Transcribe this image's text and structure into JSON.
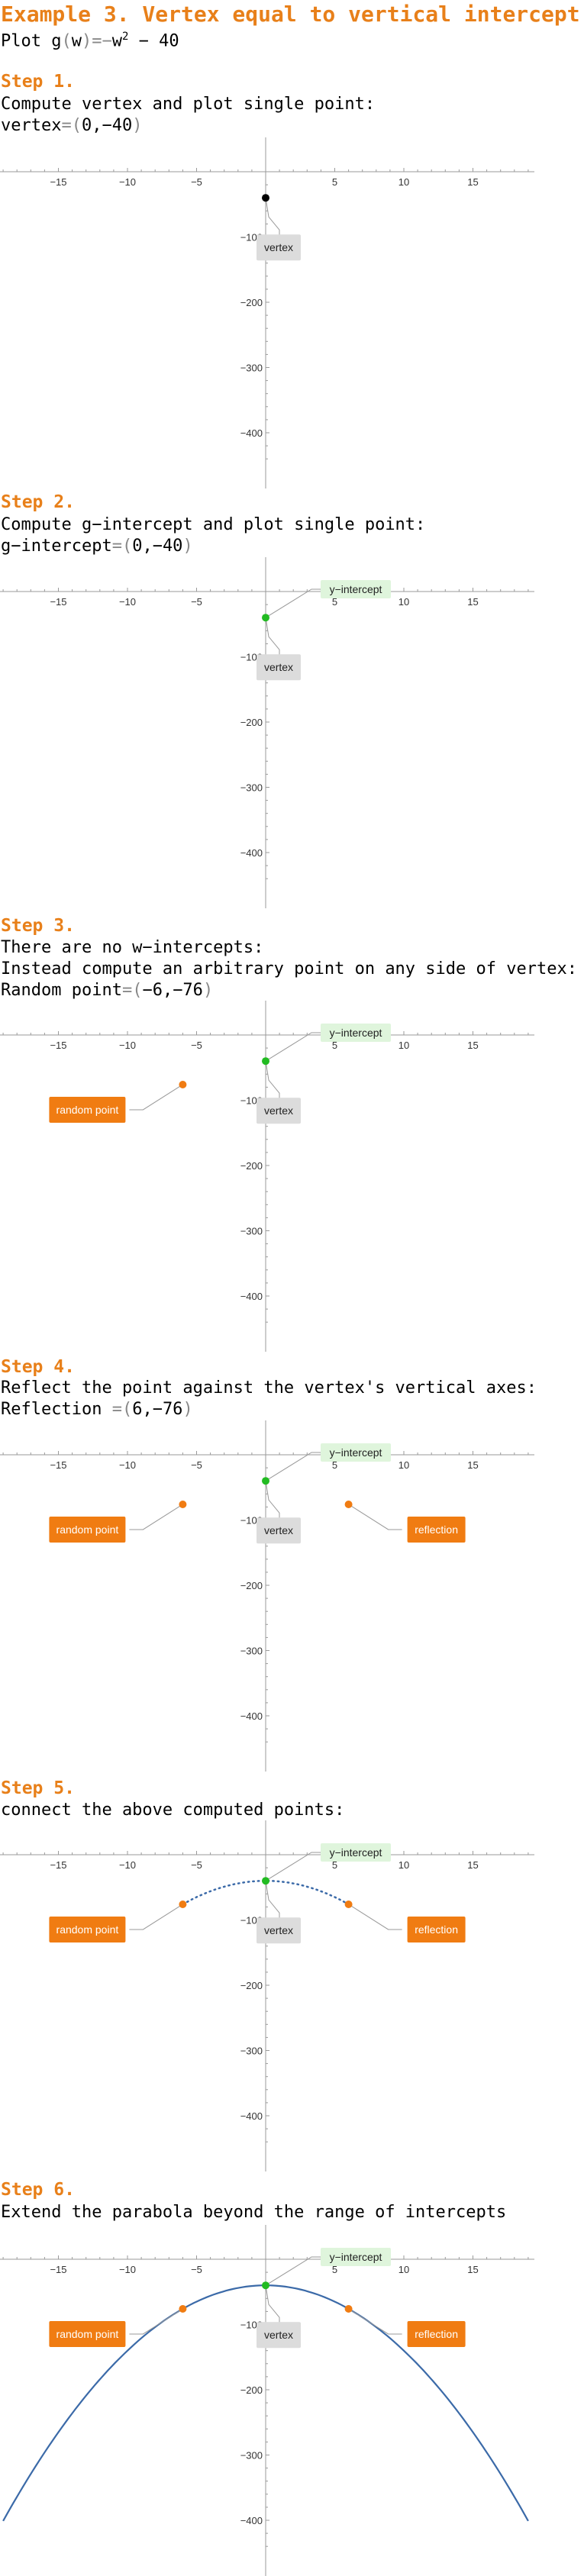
{
  "title": "Example 3. Vertex equal to vertical intercept",
  "plot_line": {
    "prefix": "Plot ",
    "fn": "g",
    "open": "(",
    "var": "w",
    "close": ")",
    "eq": "=",
    "minus": "−",
    "var2": "w",
    "exp": "2",
    "rest": " − 40"
  },
  "steps": [
    {
      "label": "Step 1.",
      "lines": [
        {
          "text": "Compute vertex and plot single point:"
        },
        {
          "name": "vertex",
          "eq": "=",
          "open": "(",
          "value": "0,−40",
          "close": ")"
        }
      ]
    },
    {
      "label": "Step 2.",
      "lines": [
        {
          "text": "Compute g−intercept and plot single point:"
        },
        {
          "name": "g−intercept",
          "eq": "=",
          "open": "(",
          "value": "0,−40",
          "close": ")"
        }
      ]
    },
    {
      "label": "Step 3.",
      "lines": [
        {
          "text": "There are no w−intercepts:"
        },
        {
          "text": "Instead compute an arbitrary point on any side of vertex:"
        },
        {
          "name": "Random point",
          "eq": "=",
          "open": "(",
          "value": "−6,−76",
          "close": ")"
        }
      ]
    },
    {
      "label": "Step 4.",
      "lines": [
        {
          "text": "Reflect the point against the vertex's vertical axes:"
        },
        {
          "name": "Reflection ",
          "eq": "=",
          "open": "(",
          "value": "6,−76",
          "close": ")"
        }
      ]
    },
    {
      "label": "Step 5.",
      "lines": [
        {
          "text": "connect the above computed points:"
        }
      ]
    },
    {
      "label": "Step 6.",
      "lines": [
        {
          "text": "Extend the parabola beyond the range of intercepts"
        }
      ]
    }
  ],
  "chart_data": {
    "type": "scatter",
    "function": "g(w) = -w^2 - 40",
    "xlim": [
      -19,
      19
    ],
    "ylim": [
      -450,
      30
    ],
    "x_ticks": [
      -15,
      -10,
      -5,
      5,
      10,
      15
    ],
    "x_tick_labels": [
      "−15",
      "−10",
      "−5",
      "5",
      "10",
      "15"
    ],
    "y_ticks": [
      -100,
      -200,
      -300,
      -400
    ],
    "y_tick_labels": [
      "−100",
      "−200",
      "−300",
      "−400"
    ],
    "grid": false,
    "points": {
      "vertex": {
        "x": 0,
        "y": -40,
        "label": "vertex"
      },
      "y_intercept": {
        "x": 0,
        "y": -40,
        "label": "y−intercept"
      },
      "random_point": {
        "x": -6,
        "y": -76,
        "label": "random point"
      },
      "reflection": {
        "x": 6,
        "y": -76,
        "label": "reflection"
      }
    },
    "colors": {
      "vertex_step1": "#000000",
      "intercept": "#22bb22",
      "orange": "#f07c12",
      "curve": "#3b6aa8",
      "label_gray": "#dcdcdc",
      "label_green": "#dff5dc"
    },
    "panels": [
      {
        "points": [
          "vertex"
        ],
        "vertex_color": "black",
        "curve": "none"
      },
      {
        "points": [
          "vertex",
          "y_intercept"
        ],
        "curve": "none"
      },
      {
        "points": [
          "vertex",
          "y_intercept",
          "random_point"
        ],
        "curve": "none"
      },
      {
        "points": [
          "vertex",
          "y_intercept",
          "random_point",
          "reflection"
        ],
        "curve": "none"
      },
      {
        "points": [
          "vertex",
          "y_intercept",
          "random_point",
          "reflection"
        ],
        "curve": "dotted",
        "curve_range": [
          -6,
          6
        ]
      },
      {
        "points": [
          "vertex",
          "y_intercept",
          "random_point",
          "reflection"
        ],
        "curve": "solid",
        "curve_range": [
          -19,
          19
        ]
      }
    ]
  }
}
